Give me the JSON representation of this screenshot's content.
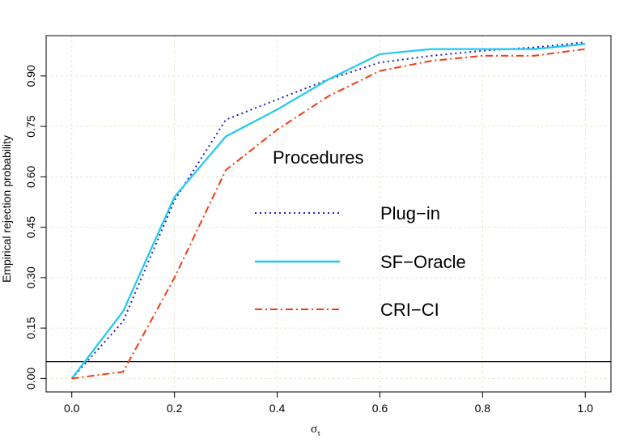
{
  "chart_data": {
    "type": "line",
    "title": "",
    "xlabel": "σ",
    "xlabel_subscript": "τ",
    "ylabel": "Empirical rejection probability",
    "xlim": [
      -0.05,
      1.05
    ],
    "ylim": [
      -0.04,
      1.02
    ],
    "x": [
      0.0,
      0.1,
      0.2,
      0.3,
      0.4,
      0.5,
      0.6,
      0.7,
      0.8,
      0.9,
      1.0
    ],
    "x_ticks": [
      0.0,
      0.2,
      0.4,
      0.6,
      0.8,
      1.0
    ],
    "x_tick_labels": [
      "0.0",
      "0.2",
      "0.4",
      "0.6",
      "0.8",
      "1.0"
    ],
    "y_ticks": [
      0.0,
      0.15,
      0.3,
      0.45,
      0.6,
      0.75,
      0.9
    ],
    "y_tick_labels": [
      "0.00",
      "0.15",
      "0.30",
      "0.45",
      "0.60",
      "0.75",
      "0.90"
    ],
    "grid": true,
    "reference_line": {
      "y": 0.05,
      "color": "#000000"
    },
    "legend": {
      "title": "Procedures",
      "position": "center"
    },
    "series": [
      {
        "name": "Plug−in",
        "color": "#2020c8",
        "dash": "dotted",
        "values": [
          0.0,
          0.17,
          0.53,
          0.77,
          0.83,
          0.89,
          0.94,
          0.96,
          0.975,
          0.985,
          1.0
        ]
      },
      {
        "name": "SF−Oracle",
        "color": "#1ec8f0",
        "dash": "solid",
        "values": [
          0.0,
          0.2,
          0.54,
          0.72,
          0.8,
          0.89,
          0.965,
          0.98,
          0.98,
          0.98,
          0.995
        ]
      },
      {
        "name": "CRI−CI",
        "color": "#f03c14",
        "dash": "dashdot",
        "values": [
          0.0,
          0.02,
          0.3,
          0.62,
          0.74,
          0.84,
          0.915,
          0.945,
          0.96,
          0.96,
          0.98
        ]
      }
    ]
  }
}
